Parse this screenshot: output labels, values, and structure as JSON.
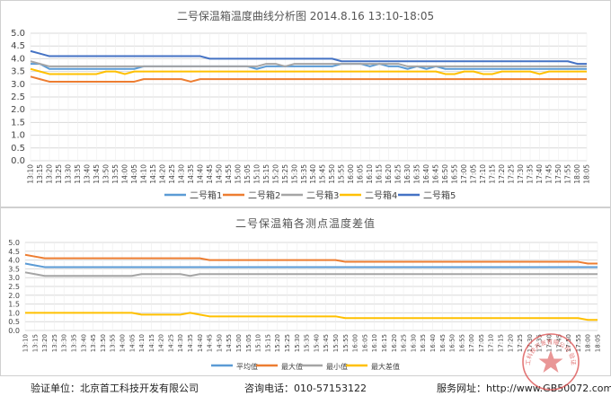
{
  "colors": {
    "box1": "#5B9BD5",
    "box2": "#ED7D31",
    "box3": "#A5A5A5",
    "box4": "#FFC000",
    "box5": "#4472C4",
    "grid": "#d9d9d9",
    "stamp": "#d94a4a"
  },
  "times": [
    "13:10",
    "13:15",
    "13:20",
    "13:25",
    "13:30",
    "13:35",
    "13:40",
    "13:45",
    "13:50",
    "13:55",
    "14:00",
    "14:05",
    "14:10",
    "14:15",
    "14:20",
    "14:25",
    "14:30",
    "14:35",
    "14:40",
    "14:45",
    "14:50",
    "14:55",
    "15:00",
    "15:05",
    "15:10",
    "15:15",
    "15:20",
    "15:25",
    "15:30",
    "15:35",
    "15:40",
    "15:45",
    "15:50",
    "15:55",
    "16:00",
    "16:05",
    "16:10",
    "16:15",
    "16:20",
    "16:25",
    "16:30",
    "16:35",
    "16:40",
    "16:45",
    "16:50",
    "16:55",
    "17:00",
    "17:05",
    "17:10",
    "17:15",
    "17:20",
    "17:25",
    "17:30",
    "17:35",
    "17:40",
    "17:45",
    "17:50",
    "17:55",
    "18:00",
    "18:05"
  ],
  "chart_data": [
    {
      "type": "line",
      "title": "二号保温箱温度曲线分析图 2014.8.16  13:10-18:05",
      "ylim": [
        0,
        5
      ],
      "yticks": [
        "0.0",
        "0.5",
        "1.0",
        "1.5",
        "2.0",
        "2.5",
        "3.0",
        "3.5",
        "4.0",
        "4.5",
        "5.0"
      ],
      "grid": true,
      "legend_position": "bottom",
      "series": [
        {
          "name": "二号箱1",
          "color_key": "box1",
          "values": [
            3.8,
            3.8,
            3.6,
            3.6,
            3.6,
            3.6,
            3.6,
            3.6,
            3.6,
            3.6,
            3.6,
            3.6,
            3.7,
            3.7,
            3.7,
            3.7,
            3.7,
            3.7,
            3.7,
            3.7,
            3.7,
            3.7,
            3.7,
            3.7,
            3.6,
            3.7,
            3.7,
            3.7,
            3.7,
            3.7,
            3.7,
            3.7,
            3.7,
            3.8,
            3.8,
            3.8,
            3.7,
            3.8,
            3.7,
            3.7,
            3.6,
            3.7,
            3.6,
            3.7,
            3.6,
            3.6,
            3.6,
            3.6,
            3.6,
            3.6,
            3.6,
            3.6,
            3.6,
            3.6,
            3.6,
            3.6,
            3.6,
            3.6,
            3.6,
            3.6
          ]
        },
        {
          "name": "二号箱2",
          "color_key": "box2",
          "values": [
            3.3,
            3.2,
            3.1,
            3.1,
            3.1,
            3.1,
            3.1,
            3.1,
            3.1,
            3.1,
            3.1,
            3.1,
            3.2,
            3.2,
            3.2,
            3.2,
            3.2,
            3.1,
            3.2,
            3.2,
            3.2,
            3.2,
            3.2,
            3.2,
            3.2,
            3.2,
            3.2,
            3.2,
            3.2,
            3.2,
            3.2,
            3.2,
            3.2,
            3.2,
            3.2,
            3.2,
            3.2,
            3.2,
            3.2,
            3.2,
            3.2,
            3.2,
            3.2,
            3.2,
            3.2,
            3.2,
            3.2,
            3.2,
            3.2,
            3.2,
            3.2,
            3.2,
            3.2,
            3.2,
            3.2,
            3.2,
            3.2,
            3.2,
            3.2,
            3.2
          ]
        },
        {
          "name": "二号箱3",
          "color_key": "box3",
          "values": [
            3.9,
            3.8,
            3.7,
            3.7,
            3.7,
            3.7,
            3.7,
            3.7,
            3.7,
            3.7,
            3.7,
            3.7,
            3.7,
            3.7,
            3.7,
            3.7,
            3.7,
            3.7,
            3.7,
            3.7,
            3.7,
            3.7,
            3.7,
            3.7,
            3.7,
            3.8,
            3.8,
            3.7,
            3.8,
            3.8,
            3.8,
            3.8,
            3.8,
            3.8,
            3.8,
            3.8,
            3.8,
            3.8,
            3.8,
            3.8,
            3.7,
            3.7,
            3.7,
            3.7,
            3.7,
            3.7,
            3.7,
            3.7,
            3.7,
            3.7,
            3.7,
            3.7,
            3.7,
            3.7,
            3.7,
            3.7,
            3.7,
            3.7,
            3.7,
            3.7
          ]
        },
        {
          "name": "二号箱4",
          "color_key": "box4",
          "values": [
            3.6,
            3.5,
            3.4,
            3.4,
            3.4,
            3.4,
            3.4,
            3.4,
            3.5,
            3.5,
            3.4,
            3.5,
            3.5,
            3.5,
            3.5,
            3.5,
            3.5,
            3.5,
            3.5,
            3.5,
            3.5,
            3.5,
            3.5,
            3.5,
            3.5,
            3.5,
            3.5,
            3.5,
            3.5,
            3.5,
            3.5,
            3.5,
            3.5,
            3.5,
            3.5,
            3.5,
            3.5,
            3.5,
            3.5,
            3.5,
            3.5,
            3.5,
            3.5,
            3.5,
            3.4,
            3.4,
            3.5,
            3.5,
            3.4,
            3.4,
            3.5,
            3.5,
            3.5,
            3.5,
            3.4,
            3.5,
            3.5,
            3.5,
            3.5,
            3.5
          ]
        },
        {
          "name": "二号箱5",
          "color_key": "box5",
          "values": [
            4.3,
            4.2,
            4.1,
            4.1,
            4.1,
            4.1,
            4.1,
            4.1,
            4.1,
            4.1,
            4.1,
            4.1,
            4.1,
            4.1,
            4.1,
            4.1,
            4.1,
            4.1,
            4.1,
            4.0,
            4.0,
            4.0,
            4.0,
            4.0,
            4.0,
            4.0,
            4.0,
            4.0,
            4.0,
            4.0,
            4.0,
            4.0,
            4.0,
            3.9,
            3.9,
            3.9,
            3.9,
            3.9,
            3.9,
            3.9,
            3.9,
            3.9,
            3.9,
            3.9,
            3.9,
            3.9,
            3.9,
            3.9,
            3.9,
            3.9,
            3.9,
            3.9,
            3.9,
            3.9,
            3.9,
            3.9,
            3.9,
            3.9,
            3.8,
            3.8
          ]
        }
      ]
    },
    {
      "type": "line",
      "title": "二号保温箱各测点温度差值",
      "ylim": [
        0,
        5
      ],
      "yticks": [
        "0.0",
        "0.5",
        "1.0",
        "1.5",
        "2.0",
        "2.5",
        "3.0",
        "3.5",
        "4.0",
        "4.5",
        "5.0"
      ],
      "grid": true,
      "legend_position": "bottom",
      "series": [
        {
          "name": "平均值",
          "color_key": "box1",
          "values": [
            3.8,
            3.7,
            3.6,
            3.6,
            3.6,
            3.6,
            3.6,
            3.6,
            3.6,
            3.6,
            3.6,
            3.6,
            3.6,
            3.6,
            3.6,
            3.6,
            3.6,
            3.6,
            3.6,
            3.6,
            3.6,
            3.6,
            3.6,
            3.6,
            3.6,
            3.6,
            3.6,
            3.6,
            3.6,
            3.6,
            3.6,
            3.6,
            3.6,
            3.6,
            3.6,
            3.6,
            3.6,
            3.6,
            3.6,
            3.6,
            3.6,
            3.6,
            3.6,
            3.6,
            3.6,
            3.6,
            3.6,
            3.6,
            3.6,
            3.6,
            3.6,
            3.6,
            3.6,
            3.6,
            3.6,
            3.6,
            3.6,
            3.6,
            3.6,
            3.6
          ]
        },
        {
          "name": "最大值",
          "color_key": "box2",
          "values": [
            4.3,
            4.2,
            4.1,
            4.1,
            4.1,
            4.1,
            4.1,
            4.1,
            4.1,
            4.1,
            4.1,
            4.1,
            4.1,
            4.1,
            4.1,
            4.1,
            4.1,
            4.1,
            4.1,
            4.0,
            4.0,
            4.0,
            4.0,
            4.0,
            4.0,
            4.0,
            4.0,
            4.0,
            4.0,
            4.0,
            4.0,
            4.0,
            4.0,
            3.9,
            3.9,
            3.9,
            3.9,
            3.9,
            3.9,
            3.9,
            3.9,
            3.9,
            3.9,
            3.9,
            3.9,
            3.9,
            3.9,
            3.9,
            3.9,
            3.9,
            3.9,
            3.9,
            3.9,
            3.9,
            3.9,
            3.9,
            3.9,
            3.9,
            3.8,
            3.8
          ]
        },
        {
          "name": "最小值",
          "color_key": "box3",
          "values": [
            3.3,
            3.2,
            3.1,
            3.1,
            3.1,
            3.1,
            3.1,
            3.1,
            3.1,
            3.1,
            3.1,
            3.1,
            3.2,
            3.2,
            3.2,
            3.2,
            3.2,
            3.1,
            3.2,
            3.2,
            3.2,
            3.2,
            3.2,
            3.2,
            3.2,
            3.2,
            3.2,
            3.2,
            3.2,
            3.2,
            3.2,
            3.2,
            3.2,
            3.2,
            3.2,
            3.2,
            3.2,
            3.2,
            3.2,
            3.2,
            3.2,
            3.2,
            3.2,
            3.2,
            3.2,
            3.2,
            3.2,
            3.2,
            3.2,
            3.2,
            3.2,
            3.2,
            3.2,
            3.2,
            3.2,
            3.2,
            3.2,
            3.2,
            3.2,
            3.2
          ]
        },
        {
          "name": "最大差值",
          "color_key": "box4",
          "values": [
            1.0,
            1.0,
            1.0,
            1.0,
            1.0,
            1.0,
            1.0,
            1.0,
            1.0,
            1.0,
            1.0,
            1.0,
            0.9,
            0.9,
            0.9,
            0.9,
            0.9,
            1.0,
            0.9,
            0.8,
            0.8,
            0.8,
            0.8,
            0.8,
            0.8,
            0.8,
            0.8,
            0.8,
            0.8,
            0.8,
            0.8,
            0.8,
            0.8,
            0.7,
            0.7,
            0.7,
            0.7,
            0.7,
            0.7,
            0.7,
            0.7,
            0.7,
            0.7,
            0.7,
            0.7,
            0.7,
            0.7,
            0.7,
            0.7,
            0.7,
            0.7,
            0.7,
            0.7,
            0.7,
            0.7,
            0.7,
            0.7,
            0.7,
            0.6,
            0.6
          ]
        }
      ]
    }
  ],
  "footer": {
    "verifier": "验证单位：北京首工科技开发有限公司",
    "phone": "咨询电话：010-57153122",
    "website": "服务网址：http://www.GB50072.com"
  },
  "stamp": {
    "text": "北京首工科技开发有限公司 验证专用章"
  }
}
